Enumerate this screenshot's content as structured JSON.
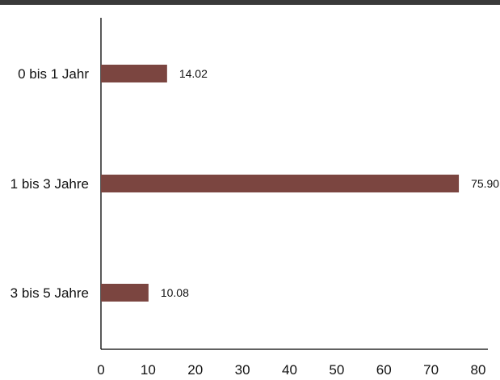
{
  "chart_data": {
    "type": "bar",
    "orientation": "horizontal",
    "categories": [
      "0 bis 1 Jahr",
      "1 bis 3 Jahre",
      "3 bis 5 Jahre"
    ],
    "values": [
      14.02,
      75.9,
      10.08
    ],
    "value_labels": [
      "14.02",
      "75.90",
      "10.08"
    ],
    "xlim": [
      0,
      80
    ],
    "xticks": [
      "0",
      "10",
      "20",
      "30",
      "40",
      "50",
      "60",
      "70",
      "80"
    ],
    "title": "",
    "xlabel": "",
    "ylabel": "",
    "grid": false,
    "legend": "none",
    "colors": {
      "bar": "#7b4540",
      "axis": "#000000",
      "top_rule": "#3a3a3a"
    }
  }
}
